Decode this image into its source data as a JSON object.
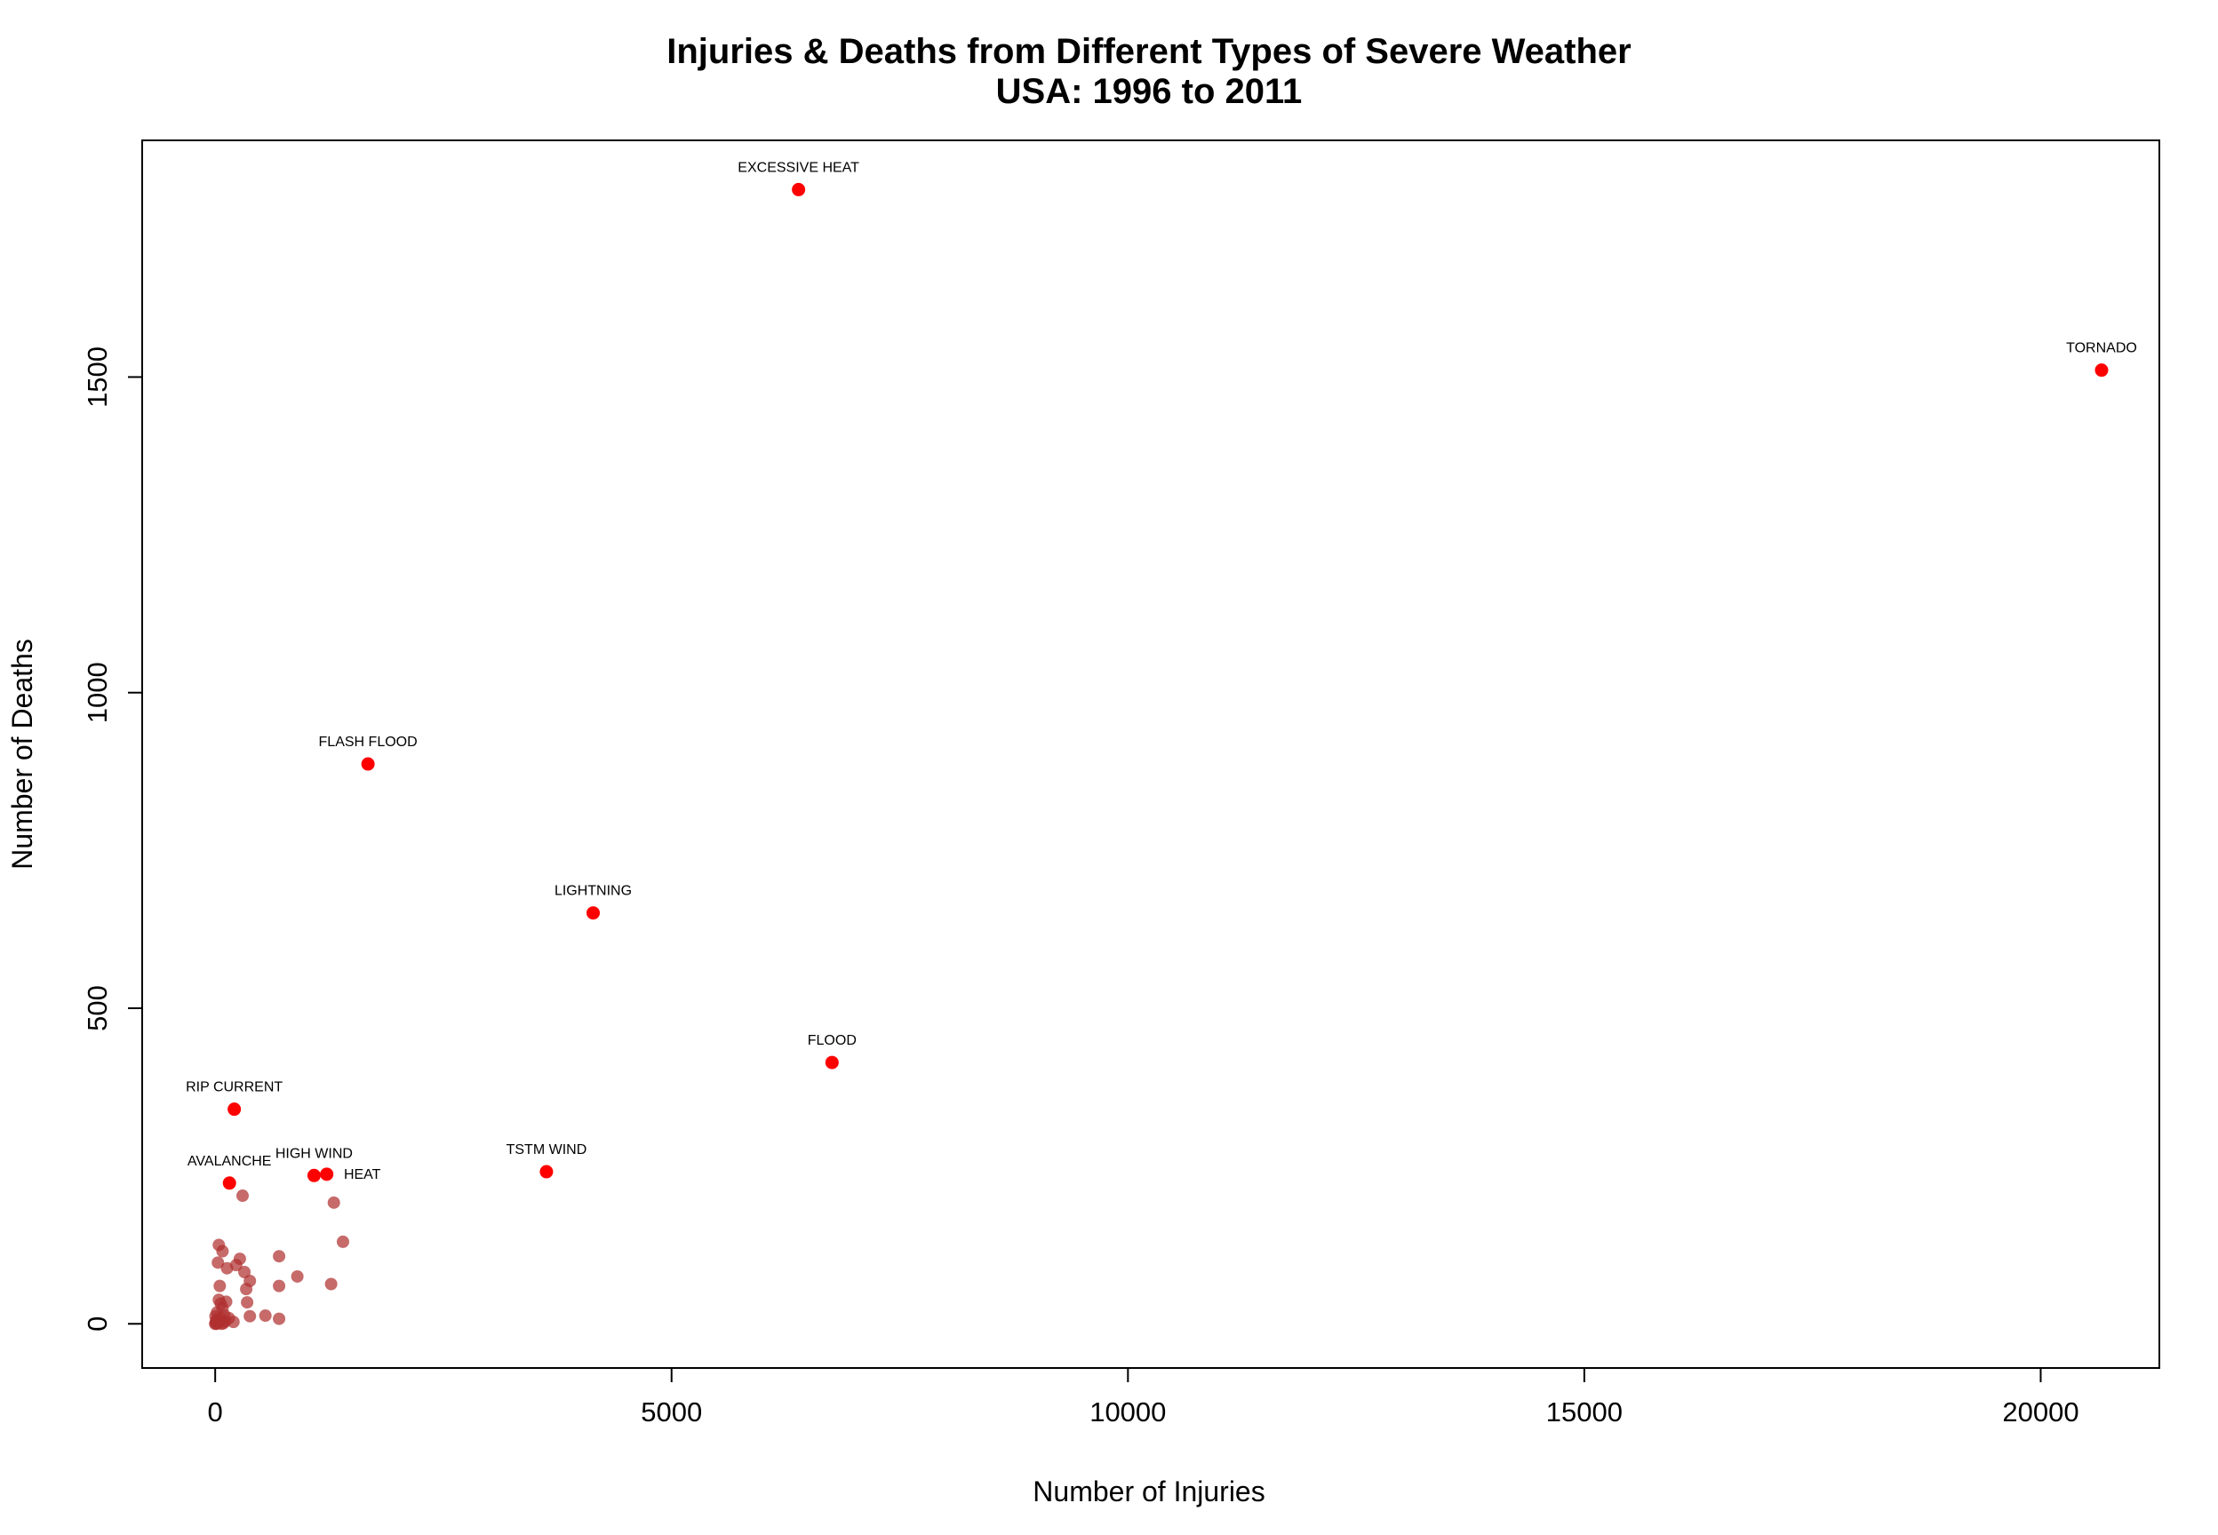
{
  "chart_data": {
    "type": "scatter",
    "title": "Injuries & Deaths from Different Types of Severe Weather",
    "subtitle": "USA: 1996 to 2011",
    "xlabel": "Number of Injuries",
    "ylabel": "Number of Deaths",
    "xlim": [
      -800,
      21300
    ],
    "ylim": [
      -70,
      1875
    ],
    "x_ticks": [
      0,
      5000,
      10000,
      15000,
      20000
    ],
    "y_ticks": [
      0,
      500,
      1000,
      1500
    ],
    "grid": false,
    "legend": "none",
    "highlight_color": "#ff0000",
    "other_color": "#b03030",
    "highlighted_points": [
      {
        "label": "EXCESSIVE HEAT",
        "x": 6391,
        "y": 1797
      },
      {
        "label": "TORNADO",
        "x": 20667,
        "y": 1511
      },
      {
        "label": "FLASH FLOOD",
        "x": 1674,
        "y": 887
      },
      {
        "label": "LIGHTNING",
        "x": 4141,
        "y": 651
      },
      {
        "label": "FLOOD",
        "x": 6758,
        "y": 414
      },
      {
        "label": "RIP CURRENT",
        "x": 209,
        "y": 340
      },
      {
        "label": "TSTM WIND",
        "x": 3629,
        "y": 241
      },
      {
        "label": "HIGH WIND",
        "x": 1083,
        "y": 235
      },
      {
        "label": "HEAT",
        "x": 1222,
        "y": 237
      },
      {
        "label": "AVALANCHE",
        "x": 156,
        "y": 223
      }
    ],
    "other_points": [
      {
        "x": 300,
        "y": 203
      },
      {
        "x": 1300,
        "y": 192
      },
      {
        "x": 1400,
        "y": 130
      },
      {
        "x": 40,
        "y": 125
      },
      {
        "x": 80,
        "y": 115
      },
      {
        "x": 700,
        "y": 107
      },
      {
        "x": 270,
        "y": 103
      },
      {
        "x": 30,
        "y": 97
      },
      {
        "x": 130,
        "y": 88
      },
      {
        "x": 230,
        "y": 93
      },
      {
        "x": 320,
        "y": 82
      },
      {
        "x": 900,
        "y": 75
      },
      {
        "x": 380,
        "y": 68
      },
      {
        "x": 1270,
        "y": 63
      },
      {
        "x": 50,
        "y": 60
      },
      {
        "x": 700,
        "y": 60
      },
      {
        "x": 340,
        "y": 55
      },
      {
        "x": 40,
        "y": 38
      },
      {
        "x": 120,
        "y": 35
      },
      {
        "x": 60,
        "y": 32
      },
      {
        "x": 350,
        "y": 34
      },
      {
        "x": 80,
        "y": 25
      },
      {
        "x": 20,
        "y": 18
      },
      {
        "x": 100,
        "y": 14
      },
      {
        "x": 380,
        "y": 12
      },
      {
        "x": 550,
        "y": 13
      },
      {
        "x": 150,
        "y": 9
      },
      {
        "x": 700,
        "y": 8
      },
      {
        "x": 60,
        "y": 7
      },
      {
        "x": 10,
        "y": 5
      },
      {
        "x": 200,
        "y": 3
      },
      {
        "x": 30,
        "y": 2
      },
      {
        "x": 90,
        "y": 1
      },
      {
        "x": 0,
        "y": 0
      },
      {
        "x": 5,
        "y": 1
      },
      {
        "x": 15,
        "y": 0
      },
      {
        "x": 45,
        "y": 3
      },
      {
        "x": 70,
        "y": 0
      },
      {
        "x": 25,
        "y": 8
      },
      {
        "x": 3,
        "y": 12
      },
      {
        "x": 110,
        "y": 4
      }
    ]
  }
}
